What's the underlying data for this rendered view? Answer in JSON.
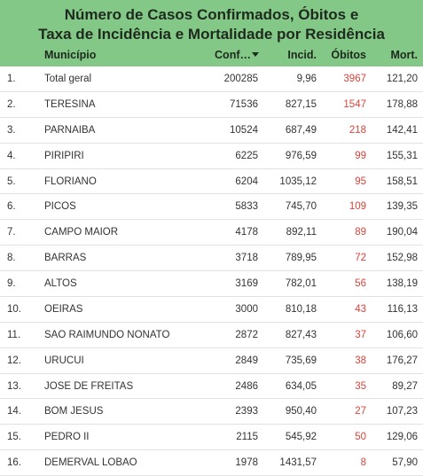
{
  "header": {
    "title_lines": [
      "Número de Casos Confirmados, Óbitos e",
      "Taxa de Incidência e Mortalidade por Residência"
    ],
    "columns": [
      "Município",
      "Conf…",
      "Incid.",
      "Óbitos",
      "Mort."
    ]
  },
  "table": {
    "rows": [
      [
        "1.",
        "Total geral",
        "200285",
        "9,96",
        "3967",
        "121,20"
      ],
      [
        "2.",
        "TERESINA",
        "71536",
        "827,15",
        "1547",
        "178,88"
      ],
      [
        "3.",
        "PARNAIBA",
        "10524",
        "687,49",
        "218",
        "142,41"
      ],
      [
        "4.",
        "PIRIPIRI",
        "6225",
        "976,59",
        "99",
        "155,31"
      ],
      [
        "5.",
        "FLORIANO",
        "6204",
        "1035,12",
        "95",
        "158,51"
      ],
      [
        "6.",
        "PICOS",
        "5833",
        "745,70",
        "109",
        "139,35"
      ],
      [
        "7.",
        "CAMPO MAIOR",
        "4178",
        "892,11",
        "89",
        "190,04"
      ],
      [
        "8.",
        "BARRAS",
        "3718",
        "789,95",
        "72",
        "152,98"
      ],
      [
        "9.",
        "ALTOS",
        "3169",
        "782,01",
        "56",
        "138,19"
      ],
      [
        "10.",
        "OEIRAS",
        "3000",
        "810,18",
        "43",
        "116,13"
      ],
      [
        "11.",
        "SAO RAIMUNDO NONATO",
        "2872",
        "827,43",
        "37",
        "106,60"
      ],
      [
        "12.",
        "URUCUI",
        "2849",
        "735,69",
        "38",
        "176,27"
      ],
      [
        "13.",
        "JOSE DE FREITAS",
        "2486",
        "634,05",
        "35",
        "89,27"
      ],
      [
        "14.",
        "BOM JESUS",
        "2393",
        "950,40",
        "27",
        "107,23"
      ],
      [
        "15.",
        "PEDRO II",
        "2115",
        "545,92",
        "50",
        "129,06"
      ],
      [
        "16.",
        "DEMERVAL LOBAO",
        "1978",
        "1431,57",
        "8",
        "57,90"
      ]
    ]
  }
}
